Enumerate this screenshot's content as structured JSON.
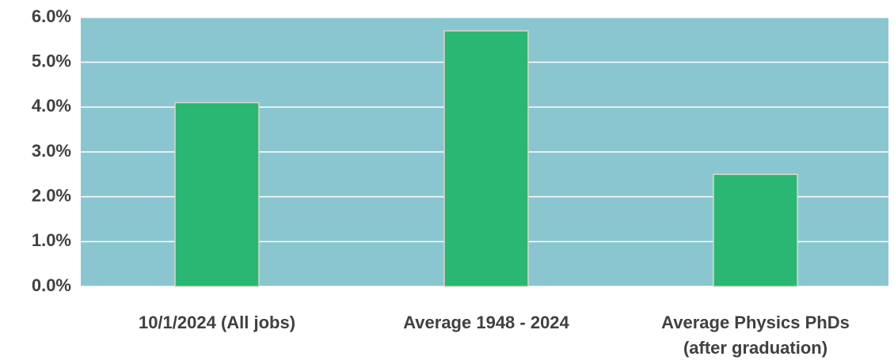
{
  "chart_data": {
    "type": "bar",
    "categories": [
      "10/1/2024 (All jobs)",
      "Average 1948 - 2024",
      "Average Physics PhDs\n(after graduation)"
    ],
    "values": [
      4.1,
      5.7,
      2.5
    ],
    "color": "#2ab673",
    "background": "#8ac6d0",
    "ylim": [
      0,
      6
    ],
    "yticks": [
      {
        "value": 0,
        "label": "0.0%"
      },
      {
        "value": 1,
        "label": "1.0%"
      },
      {
        "value": 2,
        "label": "2.0%"
      },
      {
        "value": 3,
        "label": "3.0%"
      },
      {
        "value": 4,
        "label": "4.0%"
      },
      {
        "value": 5,
        "label": "5.0%"
      },
      {
        "value": 6,
        "label": "6.0%"
      }
    ],
    "grid": true
  }
}
